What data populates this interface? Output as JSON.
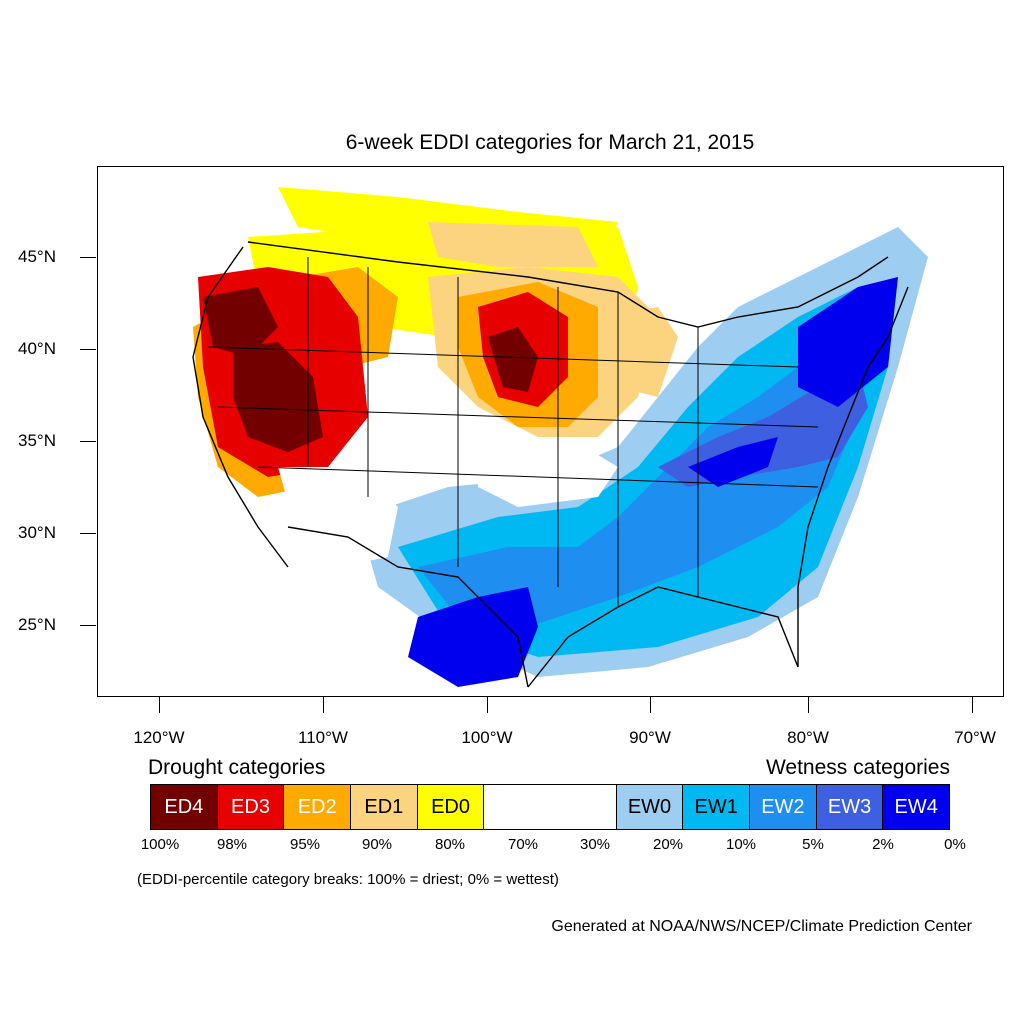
{
  "title": "6-week EDDI categories for March 21, 2015",
  "axes": {
    "lat_labels": [
      "45°N",
      "40°N",
      "35°N",
      "30°N",
      "25°N"
    ],
    "lon_labels": [
      "120°W",
      "110°W",
      "100°W",
      "90°W",
      "80°W",
      "70°W"
    ],
    "lat_values": [
      45,
      40,
      35,
      30,
      25
    ],
    "lon_values": [
      -120,
      -110,
      -100,
      -90,
      -80,
      -70
    ]
  },
  "legend": {
    "drought_title": "Drought categories",
    "wetness_title": "Wetness categories",
    "categories": [
      {
        "label": "ED4",
        "color": "#730000",
        "text_color": "#ffffff"
      },
      {
        "label": "ED3",
        "color": "#e60000",
        "text_color": "#ffffff"
      },
      {
        "label": "ED2",
        "color": "#ffaa00",
        "text_color": "#ffffff"
      },
      {
        "label": "ED1",
        "color": "#fcd37f",
        "text_color": "#000000"
      },
      {
        "label": "ED0",
        "color": "#ffff00",
        "text_color": "#000000"
      },
      {
        "label": "",
        "color": "#ffffff",
        "text_color": "#000000"
      },
      {
        "label": "EW0",
        "color": "#9dcdf0",
        "text_color": "#000000"
      },
      {
        "label": "EW1",
        "color": "#00b9f2",
        "text_color": "#000000"
      },
      {
        "label": "EW2",
        "color": "#1e8ff0",
        "text_color": "#ffffff"
      },
      {
        "label": "EW3",
        "color": "#3d5fe0",
        "text_color": "#ffffff"
      },
      {
        "label": "EW4",
        "color": "#0000ee",
        "text_color": "#ffffff"
      }
    ],
    "percentiles": [
      "100%",
      "98%",
      "95%",
      "90%",
      "80%",
      "70%",
      "30%",
      "20%",
      "10%",
      "5%",
      "2%",
      "0%"
    ]
  },
  "note": "(EDDI-percentile category breaks: 100% = driest; 0% = wettest)",
  "credit": "Generated at NOAA/NWS/NCEP/Climate Prediction Center"
}
